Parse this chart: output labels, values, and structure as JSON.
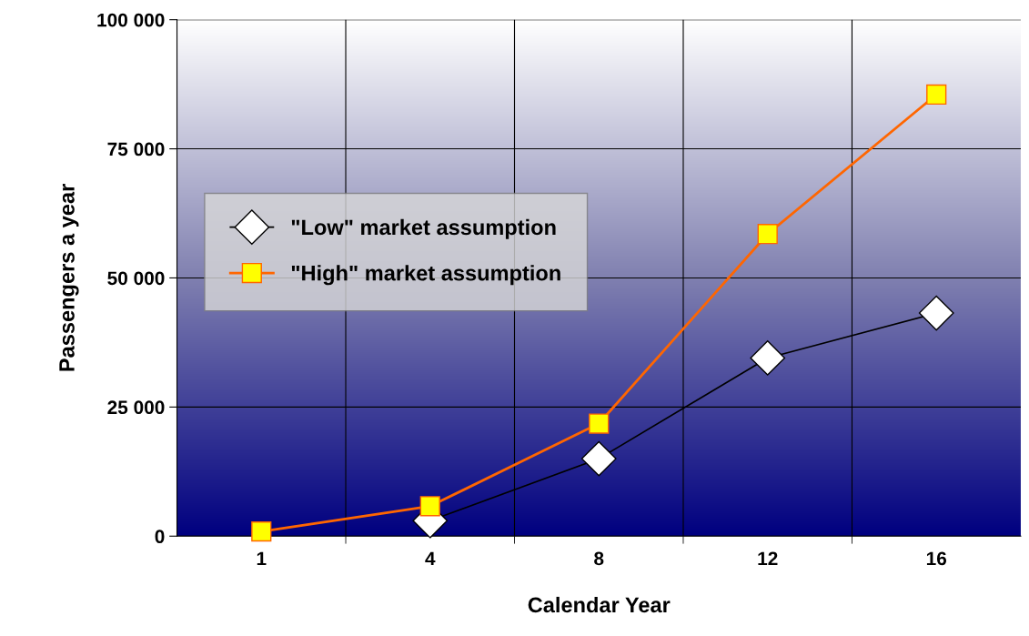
{
  "chart_data": {
    "type": "line",
    "xlabel": "Calendar Year",
    "ylabel": "Passengers a year",
    "categories": [
      "1",
      "4",
      "8",
      "12",
      "16"
    ],
    "series": [
      {
        "name": "\"Low\" market assumption",
        "color": "#000000",
        "marker": "diamond",
        "values": [
          null,
          3000,
          15000,
          34500,
          43200
        ]
      },
      {
        "name": "\"High\" market assumption",
        "color": "#ff6600",
        "marker": "square",
        "values": [
          900,
          5800,
          21800,
          58500,
          85500
        ]
      }
    ],
    "ylim": [
      0,
      100000
    ],
    "yticks": [
      {
        "value": 0,
        "label": "0"
      },
      {
        "value": 25000,
        "label": "25 000"
      },
      {
        "value": 50000,
        "label": "50 000"
      },
      {
        "value": 75000,
        "label": "75 000"
      },
      {
        "value": 100000,
        "label": "100 000"
      }
    ],
    "grid": true,
    "legend": "left"
  }
}
